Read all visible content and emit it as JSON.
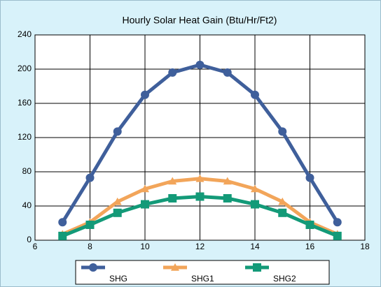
{
  "chart_data": {
    "type": "line",
    "title": "Hourly Solar Heat Gain (Btu/Hr/Ft2)",
    "x": [
      7,
      8,
      9,
      10,
      11,
      12,
      13,
      14,
      15,
      16,
      17
    ],
    "series": [
      {
        "name": "SHG",
        "color": "#3f5f9b",
        "marker": "circle",
        "values": [
          21,
          73,
          127,
          170,
          196,
          205,
          196,
          170,
          127,
          73,
          21
        ]
      },
      {
        "name": "SHG1",
        "color": "#f2a55a",
        "marker": "triangle",
        "values": [
          7,
          21,
          45,
          60,
          69,
          72,
          69,
          60,
          45,
          21,
          7
        ]
      },
      {
        "name": "SHG2",
        "color": "#139a78",
        "marker": "square",
        "values": [
          5,
          18,
          32,
          42,
          49,
          51,
          49,
          42,
          32,
          18,
          5
        ]
      }
    ],
    "xlim": [
      6,
      18
    ],
    "xticks": [
      6,
      8,
      10,
      12,
      14,
      16,
      18
    ],
    "ylim": [
      0,
      240
    ],
    "yticks": [
      0,
      40,
      80,
      120,
      160,
      200,
      240
    ],
    "grid": true,
    "legend": "bottom"
  }
}
